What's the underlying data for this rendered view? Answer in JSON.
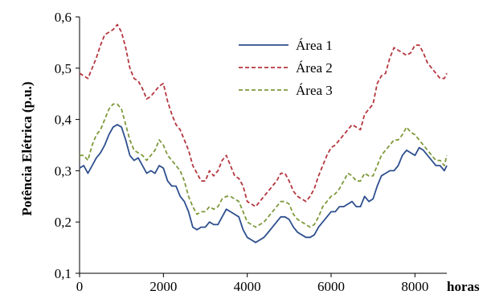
{
  "chart_data": {
    "type": "line",
    "title": "",
    "xlabel": "horas",
    "ylabel": "Potência Elétrica (p.u.)",
    "xlim": [
      0,
      8760
    ],
    "ylim": [
      0.1,
      0.6
    ],
    "x_ticks": [
      0,
      2000,
      4000,
      6000,
      8000
    ],
    "y_ticks": [
      0.1,
      0.2,
      0.3,
      0.4,
      0.5,
      0.6
    ],
    "x_tick_labels": [
      "0",
      "2000",
      "4000",
      "6000",
      "8000"
    ],
    "y_tick_labels": [
      "0,1",
      "0,2",
      "0,3",
      "0,4",
      "0,5",
      "0,6"
    ],
    "grid": false,
    "legend_position": "top-center",
    "series": [
      {
        "name": "Área 1",
        "color": "#2e4f8e",
        "style": "solid",
        "x": [
          0,
          100,
          200,
          300,
          400,
          500,
          600,
          700,
          800,
          900,
          1000,
          1100,
          1200,
          1300,
          1400,
          1500,
          1600,
          1700,
          1800,
          1900,
          2000,
          2100,
          2200,
          2300,
          2400,
          2500,
          2600,
          2700,
          2800,
          2900,
          3000,
          3100,
          3200,
          3300,
          3400,
          3500,
          3600,
          3700,
          3800,
          3900,
          4000,
          4100,
          4200,
          4300,
          4400,
          4500,
          4600,
          4700,
          4800,
          4900,
          5000,
          5100,
          5200,
          5300,
          5400,
          5500,
          5600,
          5700,
          5800,
          5900,
          6000,
          6100,
          6200,
          6300,
          6400,
          6500,
          6600,
          6700,
          6800,
          6900,
          7000,
          7100,
          7200,
          7300,
          7400,
          7500,
          7600,
          7700,
          7800,
          7900,
          8000,
          8100,
          8200,
          8300,
          8400,
          8500,
          8600,
          8700,
          8760
        ],
        "values": [
          0.305,
          0.31,
          0.295,
          0.31,
          0.325,
          0.335,
          0.35,
          0.37,
          0.385,
          0.39,
          0.385,
          0.36,
          0.33,
          0.32,
          0.325,
          0.31,
          0.295,
          0.3,
          0.295,
          0.31,
          0.305,
          0.28,
          0.27,
          0.27,
          0.25,
          0.24,
          0.22,
          0.19,
          0.185,
          0.19,
          0.19,
          0.2,
          0.195,
          0.195,
          0.21,
          0.225,
          0.22,
          0.215,
          0.21,
          0.185,
          0.17,
          0.165,
          0.16,
          0.165,
          0.17,
          0.18,
          0.19,
          0.2,
          0.21,
          0.21,
          0.205,
          0.19,
          0.18,
          0.175,
          0.17,
          0.17,
          0.175,
          0.19,
          0.2,
          0.21,
          0.22,
          0.22,
          0.23,
          0.23,
          0.235,
          0.24,
          0.23,
          0.23,
          0.25,
          0.24,
          0.245,
          0.27,
          0.29,
          0.295,
          0.3,
          0.3,
          0.31,
          0.33,
          0.34,
          0.335,
          0.33,
          0.345,
          0.34,
          0.33,
          0.32,
          0.31,
          0.31,
          0.3,
          0.31
        ]
      },
      {
        "name": "Área 2",
        "color": "#b5363f",
        "style": "dashed",
        "x": [
          0,
          100,
          200,
          300,
          400,
          500,
          600,
          700,
          800,
          900,
          1000,
          1100,
          1200,
          1300,
          1400,
          1500,
          1600,
          1700,
          1800,
          1900,
          2000,
          2100,
          2200,
          2300,
          2400,
          2500,
          2600,
          2700,
          2800,
          2900,
          3000,
          3100,
          3200,
          3300,
          3400,
          3500,
          3600,
          3700,
          3800,
          3900,
          4000,
          4100,
          4200,
          4300,
          4400,
          4500,
          4600,
          4700,
          4800,
          4900,
          5000,
          5100,
          5200,
          5300,
          5400,
          5500,
          5600,
          5700,
          5800,
          5900,
          6000,
          6100,
          6200,
          6300,
          6400,
          6500,
          6600,
          6700,
          6800,
          6900,
          7000,
          7100,
          7200,
          7300,
          7400,
          7500,
          7600,
          7700,
          7800,
          7900,
          8000,
          8100,
          8200,
          8300,
          8400,
          8500,
          8600,
          8700,
          8760
        ],
        "values": [
          0.49,
          0.485,
          0.48,
          0.5,
          0.52,
          0.545,
          0.565,
          0.57,
          0.575,
          0.585,
          0.57,
          0.54,
          0.5,
          0.48,
          0.475,
          0.46,
          0.44,
          0.445,
          0.455,
          0.465,
          0.47,
          0.435,
          0.41,
          0.39,
          0.38,
          0.36,
          0.34,
          0.31,
          0.295,
          0.28,
          0.28,
          0.3,
          0.29,
          0.3,
          0.32,
          0.33,
          0.31,
          0.29,
          0.285,
          0.27,
          0.24,
          0.235,
          0.23,
          0.24,
          0.25,
          0.26,
          0.27,
          0.28,
          0.295,
          0.295,
          0.28,
          0.26,
          0.25,
          0.245,
          0.24,
          0.25,
          0.265,
          0.29,
          0.31,
          0.33,
          0.345,
          0.35,
          0.36,
          0.37,
          0.38,
          0.39,
          0.385,
          0.38,
          0.41,
          0.42,
          0.43,
          0.47,
          0.485,
          0.49,
          0.52,
          0.54,
          0.535,
          0.53,
          0.525,
          0.53,
          0.545,
          0.545,
          0.53,
          0.51,
          0.5,
          0.49,
          0.48,
          0.48,
          0.49
        ]
      },
      {
        "name": "Área 3",
        "color": "#7e9a3c",
        "style": "dashed",
        "x": [
          0,
          100,
          200,
          300,
          400,
          500,
          600,
          700,
          800,
          900,
          1000,
          1100,
          1200,
          1300,
          1400,
          1500,
          1600,
          1700,
          1800,
          1900,
          2000,
          2100,
          2200,
          2300,
          2400,
          2500,
          2600,
          2700,
          2800,
          2900,
          3000,
          3100,
          3200,
          3300,
          3400,
          3500,
          3600,
          3700,
          3800,
          3900,
          4000,
          4100,
          4200,
          4300,
          4400,
          4500,
          4600,
          4700,
          4800,
          4900,
          5000,
          5100,
          5200,
          5300,
          5400,
          5500,
          5600,
          5700,
          5800,
          5900,
          6000,
          6100,
          6200,
          6300,
          6400,
          6500,
          6600,
          6700,
          6800,
          6900,
          7000,
          7100,
          7200,
          7300,
          7400,
          7500,
          7600,
          7700,
          7800,
          7900,
          8000,
          8100,
          8200,
          8300,
          8400,
          8500,
          8600,
          8700,
          8760
        ],
        "values": [
          0.33,
          0.33,
          0.32,
          0.35,
          0.37,
          0.38,
          0.4,
          0.42,
          0.43,
          0.43,
          0.42,
          0.39,
          0.36,
          0.34,
          0.335,
          0.33,
          0.32,
          0.33,
          0.34,
          0.36,
          0.35,
          0.33,
          0.32,
          0.31,
          0.3,
          0.28,
          0.25,
          0.23,
          0.215,
          0.22,
          0.22,
          0.23,
          0.225,
          0.23,
          0.245,
          0.25,
          0.25,
          0.245,
          0.24,
          0.22,
          0.2,
          0.195,
          0.19,
          0.195,
          0.2,
          0.21,
          0.22,
          0.23,
          0.24,
          0.24,
          0.235,
          0.215,
          0.205,
          0.2,
          0.195,
          0.19,
          0.195,
          0.21,
          0.23,
          0.24,
          0.25,
          0.255,
          0.265,
          0.28,
          0.295,
          0.29,
          0.28,
          0.28,
          0.295,
          0.29,
          0.29,
          0.31,
          0.33,
          0.34,
          0.35,
          0.36,
          0.36,
          0.37,
          0.385,
          0.375,
          0.37,
          0.36,
          0.35,
          0.34,
          0.33,
          0.32,
          0.32,
          0.31,
          0.33
        ]
      }
    ]
  }
}
